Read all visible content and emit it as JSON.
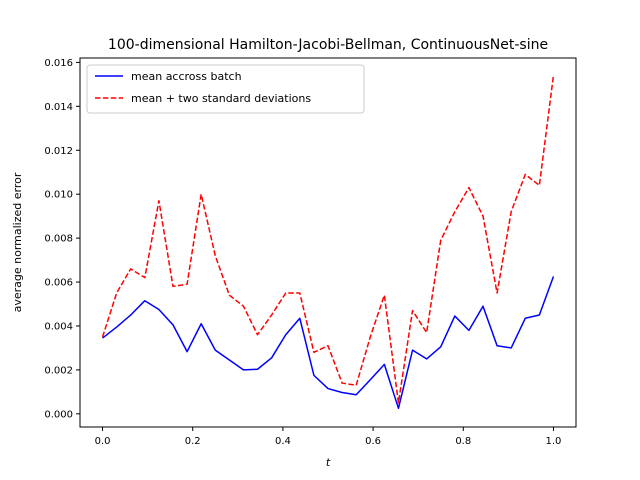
{
  "chart_data": {
    "type": "line",
    "title": "100-dimensional Hamilton-Jacobi-Bellman, ContinuousNet-sine",
    "xlabel": "t",
    "ylabel": "average normalized error",
    "xlim": [
      -0.05,
      1.05
    ],
    "ylim": [
      -0.0006,
      0.0162
    ],
    "xticks": [
      0.0,
      0.2,
      0.4,
      0.6,
      0.8,
      1.0
    ],
    "xtick_labels": [
      "0.0",
      "0.2",
      "0.4",
      "0.6",
      "0.8",
      "1.0"
    ],
    "yticks": [
      0.0,
      0.002,
      0.004,
      0.006,
      0.008,
      0.01,
      0.012,
      0.014,
      0.016
    ],
    "ytick_labels": [
      "0.000",
      "0.002",
      "0.004",
      "0.006",
      "0.008",
      "0.010",
      "0.012",
      "0.014",
      "0.016"
    ],
    "grid": false,
    "legend_position": "upper-left",
    "x": [
      0.0,
      0.03125,
      0.0625,
      0.09375,
      0.125,
      0.15625,
      0.1875,
      0.21875,
      0.25,
      0.28125,
      0.3125,
      0.34375,
      0.375,
      0.40625,
      0.4375,
      0.46875,
      0.5,
      0.53125,
      0.5625,
      0.59375,
      0.625,
      0.65625,
      0.6875,
      0.71875,
      0.75,
      0.78125,
      0.8125,
      0.84375,
      0.875,
      0.90625,
      0.9375,
      0.96875,
      1.0
    ],
    "series": [
      {
        "name": "mean accross batch",
        "color": "#0000ff",
        "dash": "solid",
        "values": [
          0.00345,
          0.00395,
          0.0045,
          0.00515,
          0.00475,
          0.00405,
          0.00283,
          0.0041,
          0.0029,
          0.00245,
          0.002,
          0.00203,
          0.00255,
          0.0036,
          0.00435,
          0.00175,
          0.00115,
          0.00097,
          0.00087,
          0.00155,
          0.00225,
          0.00025,
          0.0029,
          0.0025,
          0.00305,
          0.00445,
          0.0038,
          0.0049,
          0.0031,
          0.003,
          0.00435,
          0.0045,
          0.00625
        ]
      },
      {
        "name": "mean + two standard deviations",
        "color": "#ff0000",
        "dash": "dashed",
        "values": [
          0.0035,
          0.0055,
          0.0066,
          0.0062,
          0.0097,
          0.0058,
          0.0059,
          0.01,
          0.0072,
          0.0054,
          0.0049,
          0.0036,
          0.0045,
          0.0055,
          0.0055,
          0.0028,
          0.0031,
          0.0014,
          0.0013,
          0.0035,
          0.0054,
          0.0005,
          0.0047,
          0.0037,
          0.0079,
          0.0092,
          0.0103,
          0.009,
          0.0055,
          0.0092,
          0.0109,
          0.0104,
          0.0154
        ]
      }
    ]
  }
}
